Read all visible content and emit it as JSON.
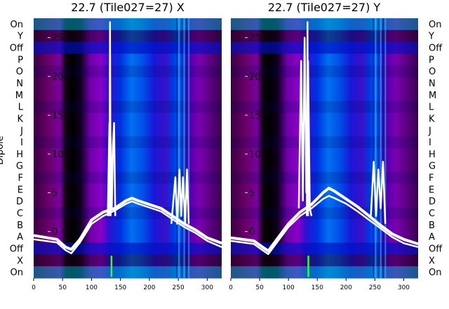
{
  "chart_data": [
    {
      "type": "heatmap",
      "title": "22.7 (Tile027=27) X",
      "ylabel": "Dipole",
      "row_labels": [
        "On",
        "Y",
        "Off",
        "P",
        "O",
        "N",
        "M",
        "L",
        "K",
        "J",
        "I",
        "H",
        "G",
        "F",
        "E",
        "D",
        "C",
        "B",
        "A",
        "Off",
        "X",
        "On"
      ],
      "x_ticks": [
        0,
        50,
        100,
        150,
        200,
        250,
        300
      ],
      "xlim": [
        0,
        325
      ],
      "y_ticks": [
        0,
        5,
        10,
        15,
        20,
        25
      ],
      "ylim": [
        -6,
        27.5
      ],
      "colormap": [
        "#000000",
        "#6a006a",
        "#8a00b8",
        "#0000d0",
        "#0080ff",
        "#00b0a0",
        "#00c040"
      ],
      "line_color": "#ffffff",
      "series": [
        {
          "x": [
            0,
            40,
            55,
            65,
            80,
            100,
            120,
            140,
            160,
            170,
            180,
            200,
            220,
            240,
            260,
            280,
            300,
            325
          ],
          "y": [
            -0.5,
            -1.0,
            -2.0,
            -2.3,
            -1.0,
            1.5,
            2.5,
            3.0,
            4.0,
            4.3,
            4.0,
            3.5,
            3.0,
            2.0,
            1.0,
            0.2,
            -0.8,
            -1.5
          ]
        },
        {
          "x": [
            0,
            40,
            55,
            65,
            80,
            100,
            120,
            140,
            160,
            170,
            180,
            200,
            220,
            240,
            260,
            280,
            300,
            325
          ],
          "y": [
            -1.0,
            -1.4,
            -2.4,
            -2.8,
            -1.4,
            1.0,
            2.0,
            2.7,
            3.6,
            3.9,
            3.6,
            3.1,
            2.6,
            1.6,
            0.6,
            -0.2,
            -1.2,
            -2.0
          ]
        }
      ],
      "spikes": [
        {
          "x": [
            128,
            131,
            133,
            135,
            137,
            139,
            141
          ],
          "y": [
            2,
            14,
            12,
            3,
            11,
            14,
            2
          ]
        },
        {
          "x": [
            131,
            132,
            133
          ],
          "y": [
            2,
            27,
            2
          ]
        },
        {
          "x": [
            238,
            245,
            248,
            252,
            255,
            258,
            262,
            265,
            268
          ],
          "y": [
            1,
            7,
            1,
            8,
            2,
            7,
            1,
            8,
            1
          ]
        }
      ]
    },
    {
      "type": "heatmap",
      "title": "22.7 (Tile027=27) Y",
      "row_labels": [
        "On",
        "Y",
        "Off",
        "P",
        "O",
        "N",
        "M",
        "L",
        "K",
        "J",
        "I",
        "H",
        "G",
        "F",
        "E",
        "D",
        "C",
        "B",
        "A",
        "Off",
        "X",
        "On"
      ],
      "x_ticks": [
        0,
        50,
        100,
        150,
        200,
        250,
        300
      ],
      "xlim": [
        0,
        325
      ],
      "y_ticks": [
        0,
        5,
        10,
        15,
        20,
        25
      ],
      "ylim": [
        -6,
        27.5
      ],
      "colormap": [
        "#000000",
        "#6a006a",
        "#8a00b8",
        "#0000d0",
        "#0080ff",
        "#00b0a0",
        "#00c040"
      ],
      "line_color": "#ffffff",
      "series": [
        {
          "x": [
            0,
            40,
            55,
            65,
            80,
            100,
            120,
            140,
            160,
            170,
            180,
            200,
            220,
            240,
            260,
            280,
            300,
            325
          ],
          "y": [
            -0.8,
            -1.2,
            -2.0,
            -2.5,
            -1.0,
            1.0,
            2.5,
            3.5,
            5.0,
            5.6,
            5.2,
            4.2,
            3.2,
            2.0,
            0.8,
            -0.3,
            -1.0,
            -1.6
          ]
        },
        {
          "x": [
            0,
            40,
            55,
            65,
            80,
            100,
            120,
            140,
            160,
            170,
            180,
            200,
            220,
            240,
            260,
            280,
            300,
            325
          ],
          "y": [
            -1.2,
            -1.6,
            -2.4,
            -2.9,
            -1.4,
            0.6,
            2.0,
            3.0,
            4.2,
            4.6,
            4.3,
            3.6,
            2.6,
            1.5,
            0.4,
            -0.7,
            -1.5,
            -2.0
          ]
        }
      ],
      "spikes": [
        {
          "x": [
            118,
            122,
            125,
            128,
            131,
            134,
            137,
            140
          ],
          "y": [
            3,
            22,
            4,
            25,
            5,
            22,
            3,
            2
          ]
        },
        {
          "x": [
            132,
            133,
            134
          ],
          "y": [
            2,
            27,
            2
          ]
        },
        {
          "x": [
            243,
            248,
            252,
            256,
            260,
            264,
            268
          ],
          "y": [
            2,
            9,
            2,
            8,
            3,
            9,
            1
          ]
        }
      ]
    }
  ]
}
